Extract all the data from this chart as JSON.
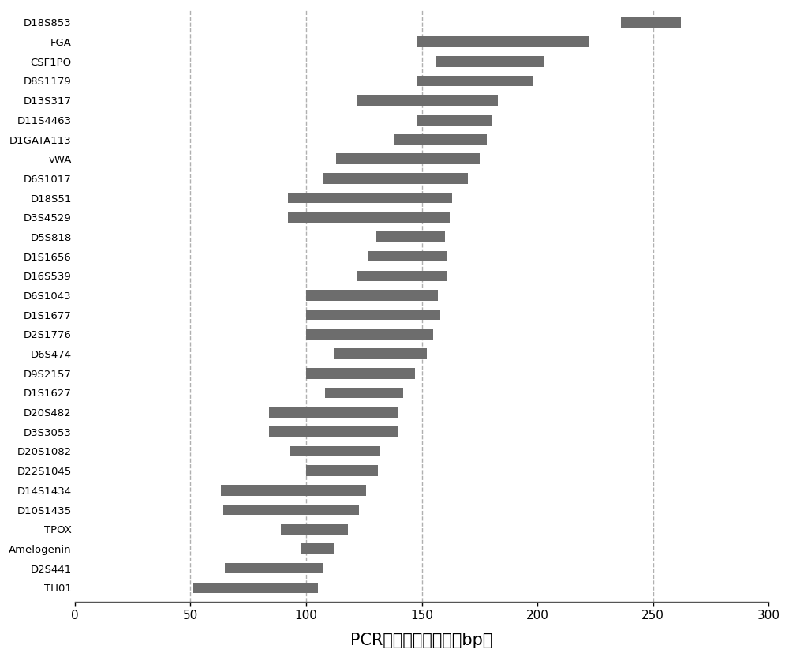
{
  "categories": [
    "D18S853",
    "FGA",
    "CSF1PO",
    "D8S1179",
    "D13S317",
    "D11S4463",
    "D1GATA113",
    "vWA",
    "D6S1017",
    "D18S51",
    "D3S4529",
    "D5S818",
    "D1S1656",
    "D16S539",
    "D6S1043",
    "D1S1677",
    "D2S1776",
    "D6S474",
    "D9S2157",
    "D1S1627",
    "D20S482",
    "D3S3053",
    "D20S1082",
    "D22S1045",
    "D14S1434",
    "D10S1435",
    "TPOX",
    "Amelogenin",
    "D2S441",
    "TH01"
  ],
  "bar_starts": [
    236,
    148,
    156,
    148,
    122,
    148,
    138,
    113,
    107,
    92,
    92,
    130,
    127,
    122,
    100,
    100,
    100,
    112,
    100,
    108,
    84,
    84,
    93,
    100,
    63,
    64,
    89,
    98,
    65,
    51
  ],
  "bar_ends": [
    262,
    222,
    203,
    198,
    183,
    180,
    178,
    175,
    170,
    163,
    162,
    160,
    161,
    161,
    157,
    158,
    155,
    152,
    147,
    142,
    140,
    140,
    132,
    131,
    126,
    123,
    118,
    112,
    107,
    105
  ],
  "bar_color": "#6d6d6d",
  "xlabel": "PCR扩增产物的长度（bp）",
  "xlabel_fontsize": 15,
  "xlim": [
    0,
    300
  ],
  "xticks": [
    0,
    50,
    100,
    150,
    200,
    250,
    300
  ],
  "vlines": [
    50,
    100,
    150,
    250
  ],
  "vline_color": "#b0b0b0",
  "vline_style": "--",
  "background_color": "#ffffff",
  "bar_height": 0.55,
  "ytick_fontsize": 9.5,
  "xtick_fontsize": 11
}
